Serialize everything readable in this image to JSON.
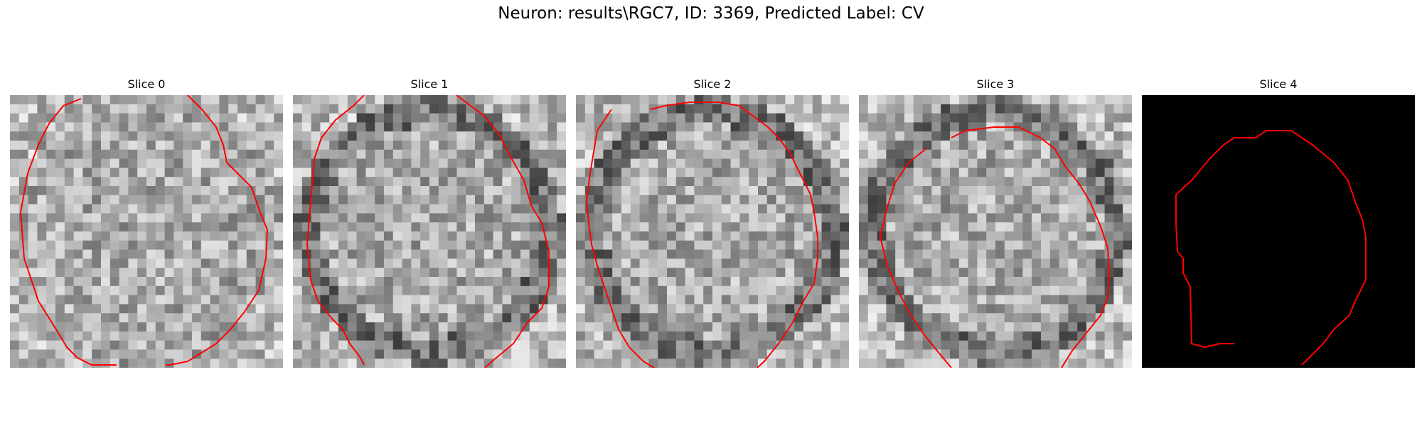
{
  "figure": {
    "title": "Neuron: results\\RGC7, ID: 3369, Predicted Label: CV",
    "panels": [
      {
        "title": "Slice 0",
        "kind": "grayscale",
        "seed": 11
      },
      {
        "title": "Slice 1",
        "kind": "grayscale",
        "seed": 23
      },
      {
        "title": "Slice 2",
        "kind": "grayscale",
        "seed": 37
      },
      {
        "title": "Slice 3",
        "kind": "grayscale",
        "seed": 51
      },
      {
        "title": "Slice 4",
        "kind": "mask",
        "seed": 0
      }
    ]
  },
  "colors": {
    "contour": "#ff0000",
    "mask_background": "#000000"
  }
}
